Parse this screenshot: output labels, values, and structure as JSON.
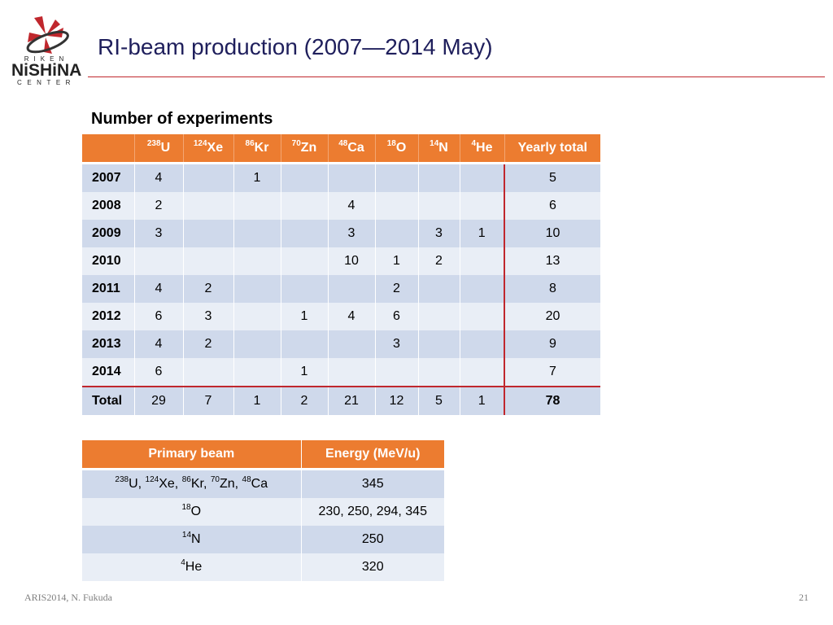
{
  "logo": {
    "line1": "RIKEN",
    "line2": "NiSHiNA",
    "line3": "CENTER",
    "icon": "riken-nishina-logo-icon"
  },
  "title": "RI-beam production (2007—2014 May)",
  "subtitle": "Number of experiments",
  "colors": {
    "header": "#ec7c30",
    "row_dark": "#cfd9eb",
    "row_light": "#e9eef6",
    "accent": "#c0272d",
    "title": "#1f1f5c"
  },
  "experiments": {
    "columns": [
      {
        "mass": "238",
        "el": "U"
      },
      {
        "mass": "124",
        "el": "Xe"
      },
      {
        "mass": "86",
        "el": "Kr"
      },
      {
        "mass": "70",
        "el": "Zn"
      },
      {
        "mass": "48",
        "el": "Ca"
      },
      {
        "mass": "18",
        "el": "O"
      },
      {
        "mass": "14",
        "el": "N"
      },
      {
        "mass": "4",
        "el": "He"
      }
    ],
    "total_col_label": "Yearly total",
    "rows": [
      {
        "year": "2007",
        "cells": [
          "4",
          "",
          "1",
          "",
          "",
          "",
          "",
          ""
        ],
        "total": "5"
      },
      {
        "year": "2008",
        "cells": [
          "2",
          "",
          "",
          "",
          "4",
          "",
          "",
          ""
        ],
        "total": "6"
      },
      {
        "year": "2009",
        "cells": [
          "3",
          "",
          "",
          "",
          "3",
          "",
          "3",
          "1"
        ],
        "total": "10"
      },
      {
        "year": "2010",
        "cells": [
          "",
          "",
          "",
          "",
          "10",
          "1",
          "2",
          ""
        ],
        "total": "13"
      },
      {
        "year": "2011",
        "cells": [
          "4",
          "2",
          "",
          "",
          "",
          "2",
          "",
          ""
        ],
        "total": "8"
      },
      {
        "year": "2012",
        "cells": [
          "6",
          "3",
          "",
          "1",
          "4",
          "6",
          "",
          ""
        ],
        "total": "20"
      },
      {
        "year": "2013",
        "cells": [
          "4",
          "2",
          "",
          "",
          "",
          "3",
          "",
          ""
        ],
        "total": "9"
      },
      {
        "year": "2014",
        "cells": [
          "6",
          "",
          "",
          "1",
          "",
          "",
          "",
          ""
        ],
        "total": "7"
      },
      {
        "year": "Total",
        "cells": [
          "29",
          "7",
          "1",
          "2",
          "21",
          "12",
          "5",
          "1"
        ],
        "total": "78"
      }
    ]
  },
  "beams": {
    "headers": [
      "Primary beam",
      "Energy (MeV/u)"
    ],
    "rows": [
      {
        "beam": [
          {
            "mass": "238",
            "el": "U"
          },
          {
            "mass": "124",
            "el": "Xe"
          },
          {
            "mass": "86",
            "el": "Kr"
          },
          {
            "mass": "70",
            "el": "Zn"
          },
          {
            "mass": "48",
            "el": "Ca"
          }
        ],
        "energy": "345"
      },
      {
        "beam": [
          {
            "mass": "18",
            "el": "O"
          }
        ],
        "energy": "230, 250, 294, 345"
      },
      {
        "beam": [
          {
            "mass": "14",
            "el": "N"
          }
        ],
        "energy": "250"
      },
      {
        "beam": [
          {
            "mass": "4",
            "el": "He"
          }
        ],
        "energy": "320"
      }
    ]
  },
  "footer": {
    "left": "ARIS2014, N. Fukuda",
    "page": "21"
  }
}
